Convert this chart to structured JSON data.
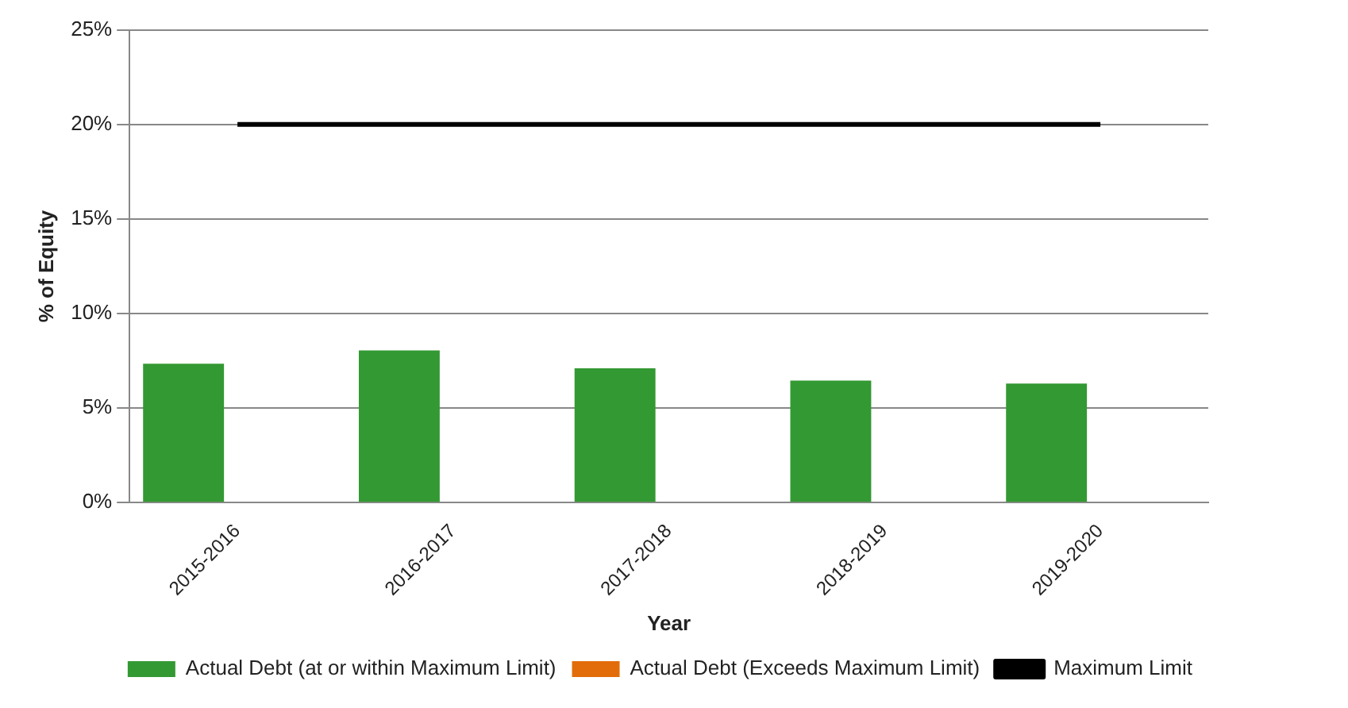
{
  "chart_data": {
    "type": "bar",
    "xlabel": "Year",
    "ylabel": "% of Equity",
    "categories": [
      "2015-2016",
      "2016-2017",
      "2017-2018",
      "2018-2019",
      "2019-2020"
    ],
    "series": [
      {
        "name": "Actual Debt (at or within Maximum Limit)",
        "color": "#339933",
        "values": [
          7.35,
          8.05,
          7.1,
          6.45,
          6.3
        ]
      },
      {
        "name": "Actual Debt (Exceeds Maximum Limit)",
        "color": "#e36c0a",
        "values": [
          null,
          null,
          null,
          null,
          null
        ]
      },
      {
        "name": "Maximum Limit",
        "type": "line",
        "color": "#000000",
        "values": [
          20,
          20,
          20,
          20,
          20
        ]
      }
    ],
    "ylim": [
      0,
      25
    ],
    "yticks": [
      {
        "value": 0,
        "label": "0%"
      },
      {
        "value": 5,
        "label": "5%"
      },
      {
        "value": 10,
        "label": "10%"
      },
      {
        "value": 15,
        "label": "15%"
      },
      {
        "value": 20,
        "label": "20%"
      },
      {
        "value": 25,
        "label": "25%"
      }
    ],
    "grid": "y",
    "legend": "bottom right",
    "marker": "none"
  }
}
